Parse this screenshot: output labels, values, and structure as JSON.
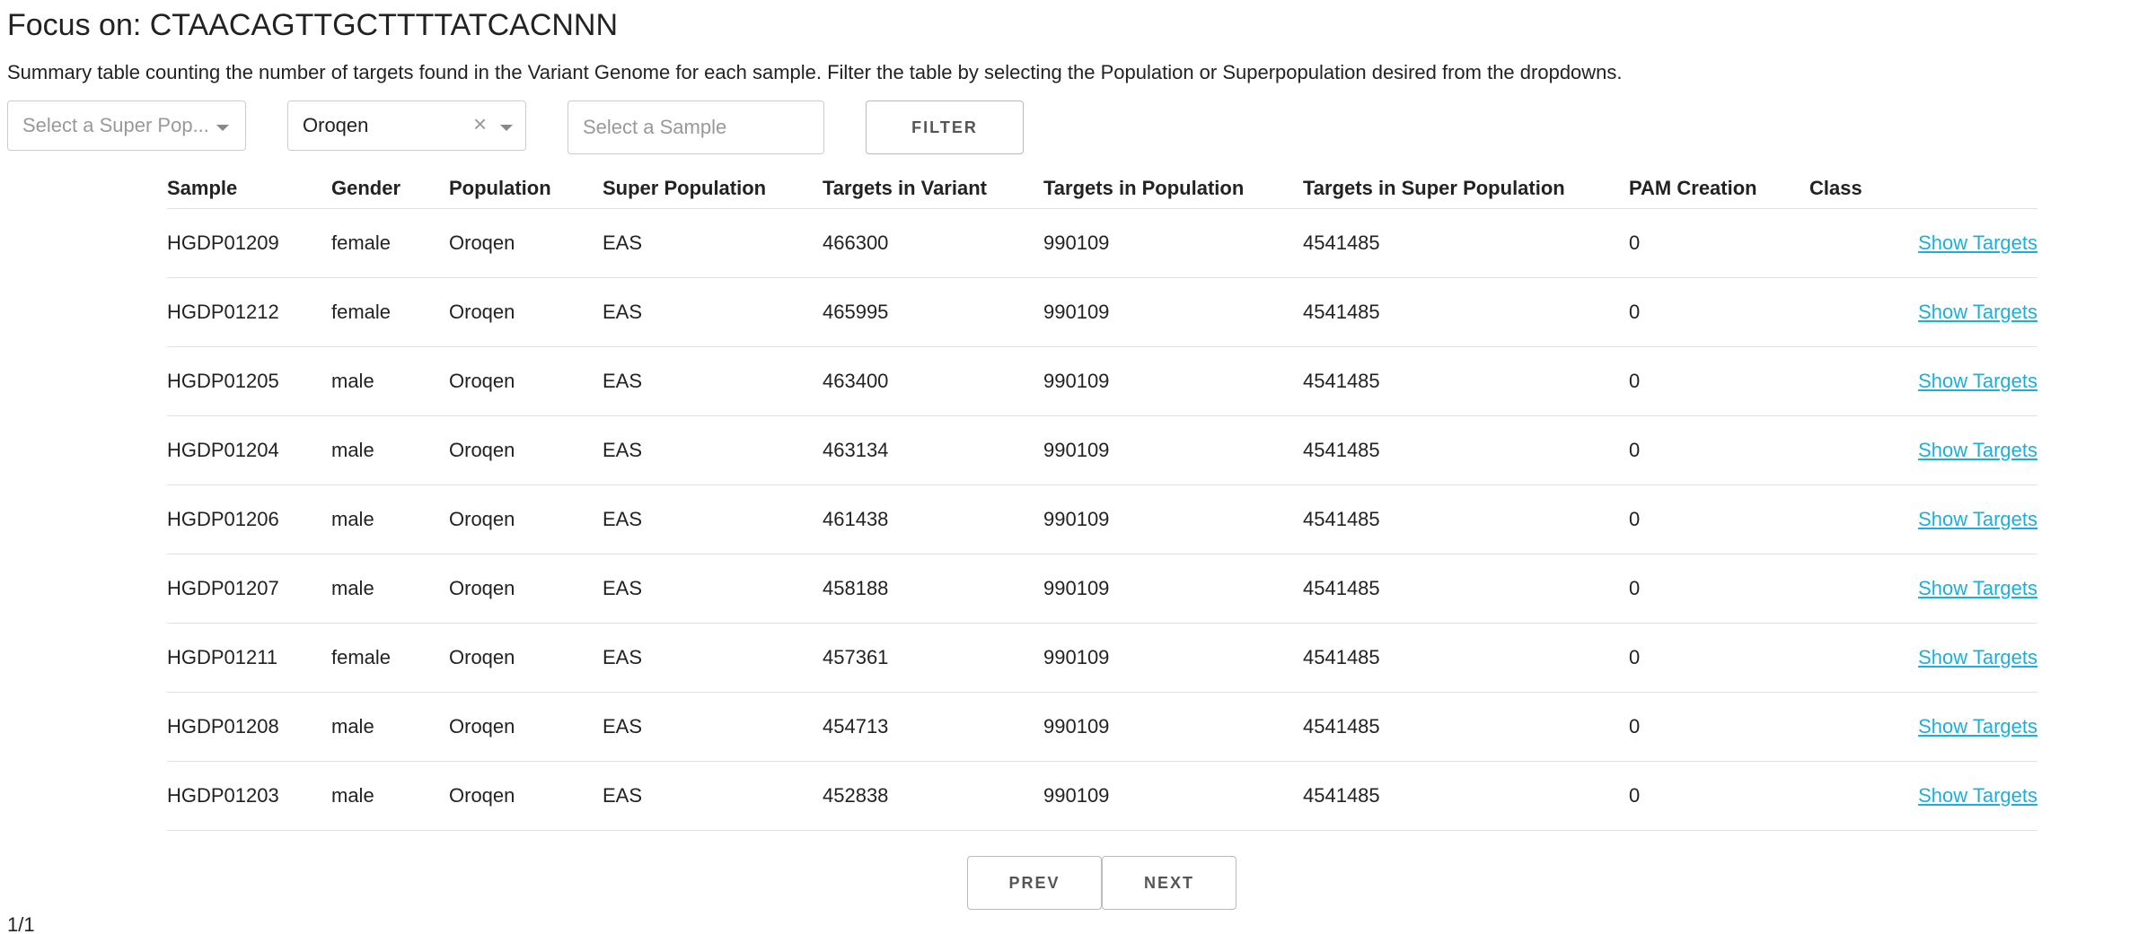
{
  "header": {
    "title": "Focus on: CTAACAGTTGCTTTTATCACNNN",
    "description": "Summary table counting the number of targets found in the Variant Genome for each sample. Filter the table by selecting the Population or Superpopulation desired from the dropdowns."
  },
  "filters": {
    "super_population_placeholder": "Select a Super Pop...",
    "population_value": "Oroqen",
    "clear_symbol": "×",
    "sample_placeholder": "Select a Sample",
    "filter_label": "FILTER"
  },
  "table": {
    "columns": [
      "Sample",
      "Gender",
      "Population",
      "Super Population",
      "Targets in Variant",
      "Targets in Population",
      "Targets in Super Population",
      "PAM Creation",
      "Class"
    ],
    "rows": [
      {
        "sample": "HGDP01209",
        "gender": "female",
        "population": "Oroqen",
        "super_population": "EAS",
        "targets_variant": "466300",
        "targets_population": "990109",
        "targets_super_population": "4541485",
        "pam_creation": "0",
        "link": "Show Targets"
      },
      {
        "sample": "HGDP01212",
        "gender": "female",
        "population": "Oroqen",
        "super_population": "EAS",
        "targets_variant": "465995",
        "targets_population": "990109",
        "targets_super_population": "4541485",
        "pam_creation": "0",
        "link": "Show Targets"
      },
      {
        "sample": "HGDP01205",
        "gender": "male",
        "population": "Oroqen",
        "super_population": "EAS",
        "targets_variant": "463400",
        "targets_population": "990109",
        "targets_super_population": "4541485",
        "pam_creation": "0",
        "link": "Show Targets"
      },
      {
        "sample": "HGDP01204",
        "gender": "male",
        "population": "Oroqen",
        "super_population": "EAS",
        "targets_variant": "463134",
        "targets_population": "990109",
        "targets_super_population": "4541485",
        "pam_creation": "0",
        "link": "Show Targets"
      },
      {
        "sample": "HGDP01206",
        "gender": "male",
        "population": "Oroqen",
        "super_population": "EAS",
        "targets_variant": "461438",
        "targets_population": "990109",
        "targets_super_population": "4541485",
        "pam_creation": "0",
        "link": "Show Targets"
      },
      {
        "sample": "HGDP01207",
        "gender": "male",
        "population": "Oroqen",
        "super_population": "EAS",
        "targets_variant": "458188",
        "targets_population": "990109",
        "targets_super_population": "4541485",
        "pam_creation": "0",
        "link": "Show Targets"
      },
      {
        "sample": "HGDP01211",
        "gender": "female",
        "population": "Oroqen",
        "super_population": "EAS",
        "targets_variant": "457361",
        "targets_population": "990109",
        "targets_super_population": "4541485",
        "pam_creation": "0",
        "link": "Show Targets"
      },
      {
        "sample": "HGDP01208",
        "gender": "male",
        "population": "Oroqen",
        "super_population": "EAS",
        "targets_variant": "454713",
        "targets_population": "990109",
        "targets_super_population": "4541485",
        "pam_creation": "0",
        "link": "Show Targets"
      },
      {
        "sample": "HGDP01203",
        "gender": "male",
        "population": "Oroqen",
        "super_population": "EAS",
        "targets_variant": "452838",
        "targets_population": "990109",
        "targets_super_population": "4541485",
        "pam_creation": "0",
        "link": "Show Targets"
      }
    ]
  },
  "pagination": {
    "prev_label": "PREV",
    "next_label": "NEXT",
    "page_indicator": "1/1"
  },
  "colors": {
    "link": "#1eaedb",
    "border": "#e1e1e1",
    "text": "#222222"
  },
  "icons": {
    "dropdown": "chevron-down-icon",
    "clear": "close-icon"
  }
}
